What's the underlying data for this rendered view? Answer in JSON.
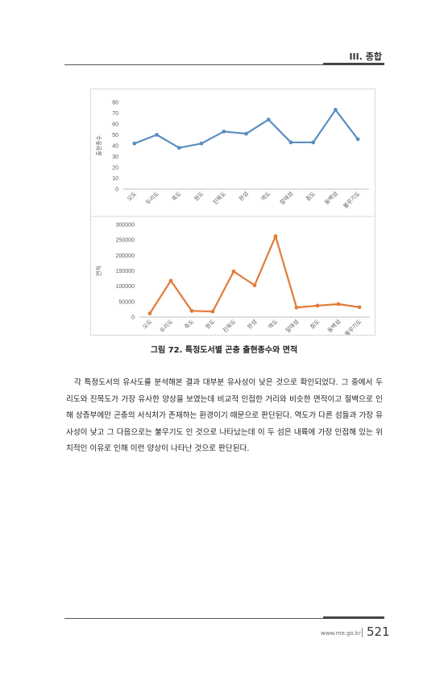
{
  "header": {
    "section": "III. 종합"
  },
  "chart_data": [
    {
      "type": "line",
      "ylabel": "출현종수",
      "ylim": [
        0,
        80
      ],
      "yticks": [
        0,
        10,
        20,
        30,
        40,
        50,
        60,
        70,
        80
      ],
      "categories": [
        "오도",
        "두리도",
        "죽도",
        "원도",
        "진목도",
        "완섬",
        "역도",
        "잘매섬",
        "칡도",
        "동백섬",
        "불무기도"
      ],
      "values": [
        42,
        50,
        38,
        42,
        53,
        51,
        64,
        43,
        43,
        73,
        46
      ],
      "color": "#5b8ec2",
      "grid": false
    },
    {
      "type": "line",
      "ylabel": "면적",
      "ylim": [
        0,
        300000
      ],
      "yticks": [
        0,
        50000,
        100000,
        150000,
        200000,
        250000,
        300000
      ],
      "categories": [
        "오도",
        "두리도",
        "죽도",
        "원도",
        "진목도",
        "완섬",
        "역도",
        "잘매섬",
        "칡도",
        "동백섬",
        "불무기도"
      ],
      "values": [
        12000,
        118000,
        20000,
        18000,
        148000,
        103000,
        262000,
        31000,
        37000,
        42000,
        32000
      ],
      "color": "#e07b39",
      "grid": false
    }
  ],
  "caption": "그림 72. 특정도서별 곤충 출현종수와 면적",
  "body_text": "각 특정도서의 유사도를 분석해본 결과 대부분 유사성이 낮은 것으로 확인되었다. 그 중에서 두리도와 진목도가 가장 유사한 양상을 보였는데 비교적 인접한 거리와 비슷한 면적이고 절벽으로 인해 상층부에만 곤충의 서식처가 존재하는 환경이기 때문으로 판단된다. 역도가 다른 섬들과 가장 유사성이 낮고 그 다음으로는 불무기도 인 것으로 나타났는데 이 두 섬은 내륙에 가장 인접해 있는 위치적인 이유로 인해 이런 양상이 나타난 것으로 판단된다.",
  "footer": {
    "url": "www.me.go.kr",
    "page": "521"
  }
}
